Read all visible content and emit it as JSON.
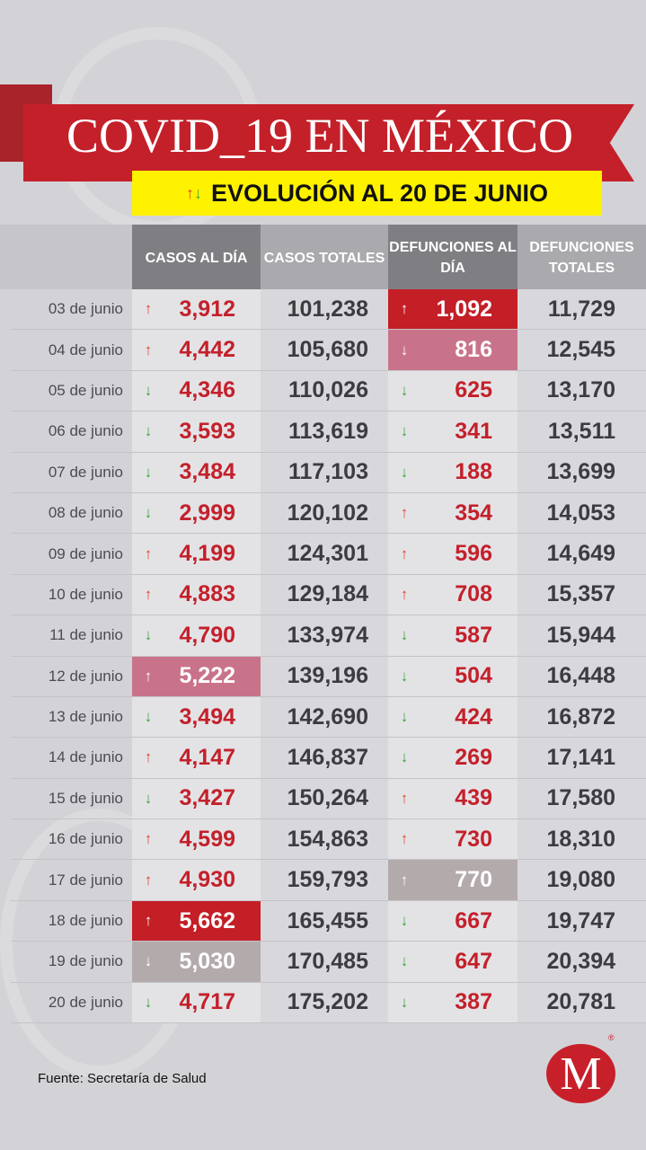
{
  "header": {
    "title": "COVID_19 EN MÉXICO",
    "subtitle": "EVOLUCIÓN AL 20 DE JUNIO",
    "subtitle_icon": "up-down-arrows-icon"
  },
  "columns": [
    "",
    "CASOS AL DÍA",
    "CASOS TOTALES",
    "DEFUNCIONES AL DÍA",
    "DEFUNCIONES TOTALES"
  ],
  "colors": {
    "brand_red": "#c4202a",
    "highlight_yellow": "#fff200",
    "up_arrow": "#e0452c",
    "down_arrow": "#3aa63a"
  },
  "rows": [
    {
      "date": "03 de junio",
      "casos_dia": "3,912",
      "casos_dir": "up",
      "casos_hl": "",
      "casos_totales": "101,238",
      "def_dia": "1,092",
      "def_dir": "up",
      "def_hl": "red",
      "def_totales": "11,729"
    },
    {
      "date": "04 de junio",
      "casos_dia": "4,442",
      "casos_dir": "up",
      "casos_hl": "",
      "casos_totales": "105,680",
      "def_dia": "816",
      "def_dir": "down",
      "def_hl": "pink",
      "def_totales": "12,545"
    },
    {
      "date": "05 de junio",
      "casos_dia": "4,346",
      "casos_dir": "down",
      "casos_hl": "",
      "casos_totales": "110,026",
      "def_dia": "625",
      "def_dir": "down",
      "def_hl": "",
      "def_totales": "13,170"
    },
    {
      "date": "06 de junio",
      "casos_dia": "3,593",
      "casos_dir": "down",
      "casos_hl": "",
      "casos_totales": "113,619",
      "def_dia": "341",
      "def_dir": "down",
      "def_hl": "",
      "def_totales": "13,511"
    },
    {
      "date": "07 de junio",
      "casos_dia": "3,484",
      "casos_dir": "down",
      "casos_hl": "",
      "casos_totales": "117,103",
      "def_dia": "188",
      "def_dir": "down",
      "def_hl": "",
      "def_totales": "13,699"
    },
    {
      "date": "08 de junio",
      "casos_dia": "2,999",
      "casos_dir": "down",
      "casos_hl": "",
      "casos_totales": "120,102",
      "def_dia": "354",
      "def_dir": "up",
      "def_hl": "",
      "def_totales": "14,053"
    },
    {
      "date": "09 de junio",
      "casos_dia": "4,199",
      "casos_dir": "up",
      "casos_hl": "",
      "casos_totales": "124,301",
      "def_dia": "596",
      "def_dir": "up",
      "def_hl": "",
      "def_totales": "14,649"
    },
    {
      "date": "10 de junio",
      "casos_dia": "4,883",
      "casos_dir": "up",
      "casos_hl": "",
      "casos_totales": "129,184",
      "def_dia": "708",
      "def_dir": "up",
      "def_hl": "",
      "def_totales": "15,357"
    },
    {
      "date": "11 de junio",
      "casos_dia": "4,790",
      "casos_dir": "down",
      "casos_hl": "",
      "casos_totales": "133,974",
      "def_dia": "587",
      "def_dir": "down",
      "def_hl": "",
      "def_totales": "15,944"
    },
    {
      "date": "12 de junio",
      "casos_dia": "5,222",
      "casos_dir": "up",
      "casos_hl": "pink",
      "casos_totales": "139,196",
      "def_dia": "504",
      "def_dir": "down",
      "def_hl": "",
      "def_totales": "16,448"
    },
    {
      "date": "13 de junio",
      "casos_dia": "3,494",
      "casos_dir": "down",
      "casos_hl": "",
      "casos_totales": "142,690",
      "def_dia": "424",
      "def_dir": "down",
      "def_hl": "",
      "def_totales": "16,872"
    },
    {
      "date": "14 de junio",
      "casos_dia": "4,147",
      "casos_dir": "up",
      "casos_hl": "",
      "casos_totales": "146,837",
      "def_dia": "269",
      "def_dir": "down",
      "def_hl": "",
      "def_totales": "17,141"
    },
    {
      "date": "15 de junio",
      "casos_dia": "3,427",
      "casos_dir": "down",
      "casos_hl": "",
      "casos_totales": "150,264",
      "def_dia": "439",
      "def_dir": "up",
      "def_hl": "",
      "def_totales": "17,580"
    },
    {
      "date": "16 de junio",
      "casos_dia": "4,599",
      "casos_dir": "up",
      "casos_hl": "",
      "casos_totales": "154,863",
      "def_dia": "730",
      "def_dir": "up",
      "def_hl": "",
      "def_totales": "18,310"
    },
    {
      "date": "17 de junio",
      "casos_dia": "4,930",
      "casos_dir": "up",
      "casos_hl": "",
      "casos_totales": "159,793",
      "def_dia": "770",
      "def_dir": "up",
      "def_hl": "gray",
      "def_totales": "19,080"
    },
    {
      "date": "18 de junio",
      "casos_dia": "5,662",
      "casos_dir": "up",
      "casos_hl": "red",
      "casos_totales": "165,455",
      "def_dia": "667",
      "def_dir": "down",
      "def_hl": "",
      "def_totales": "19,747"
    },
    {
      "date": "19 de junio",
      "casos_dia": "5,030",
      "casos_dir": "down",
      "casos_hl": "gray",
      "casos_totales": "170,485",
      "def_dia": "647",
      "def_dir": "down",
      "def_hl": "",
      "def_totales": "20,394"
    },
    {
      "date": "20 de junio",
      "casos_dia": "4,717",
      "casos_dir": "down",
      "casos_hl": "",
      "casos_totales": "175,202",
      "def_dia": "387",
      "def_dir": "down",
      "def_hl": "",
      "def_totales": "20,781"
    }
  ],
  "footer": {
    "source": "Fuente: Secretaría de Salud",
    "logo_letter": "M",
    "logo_mark": "®"
  }
}
